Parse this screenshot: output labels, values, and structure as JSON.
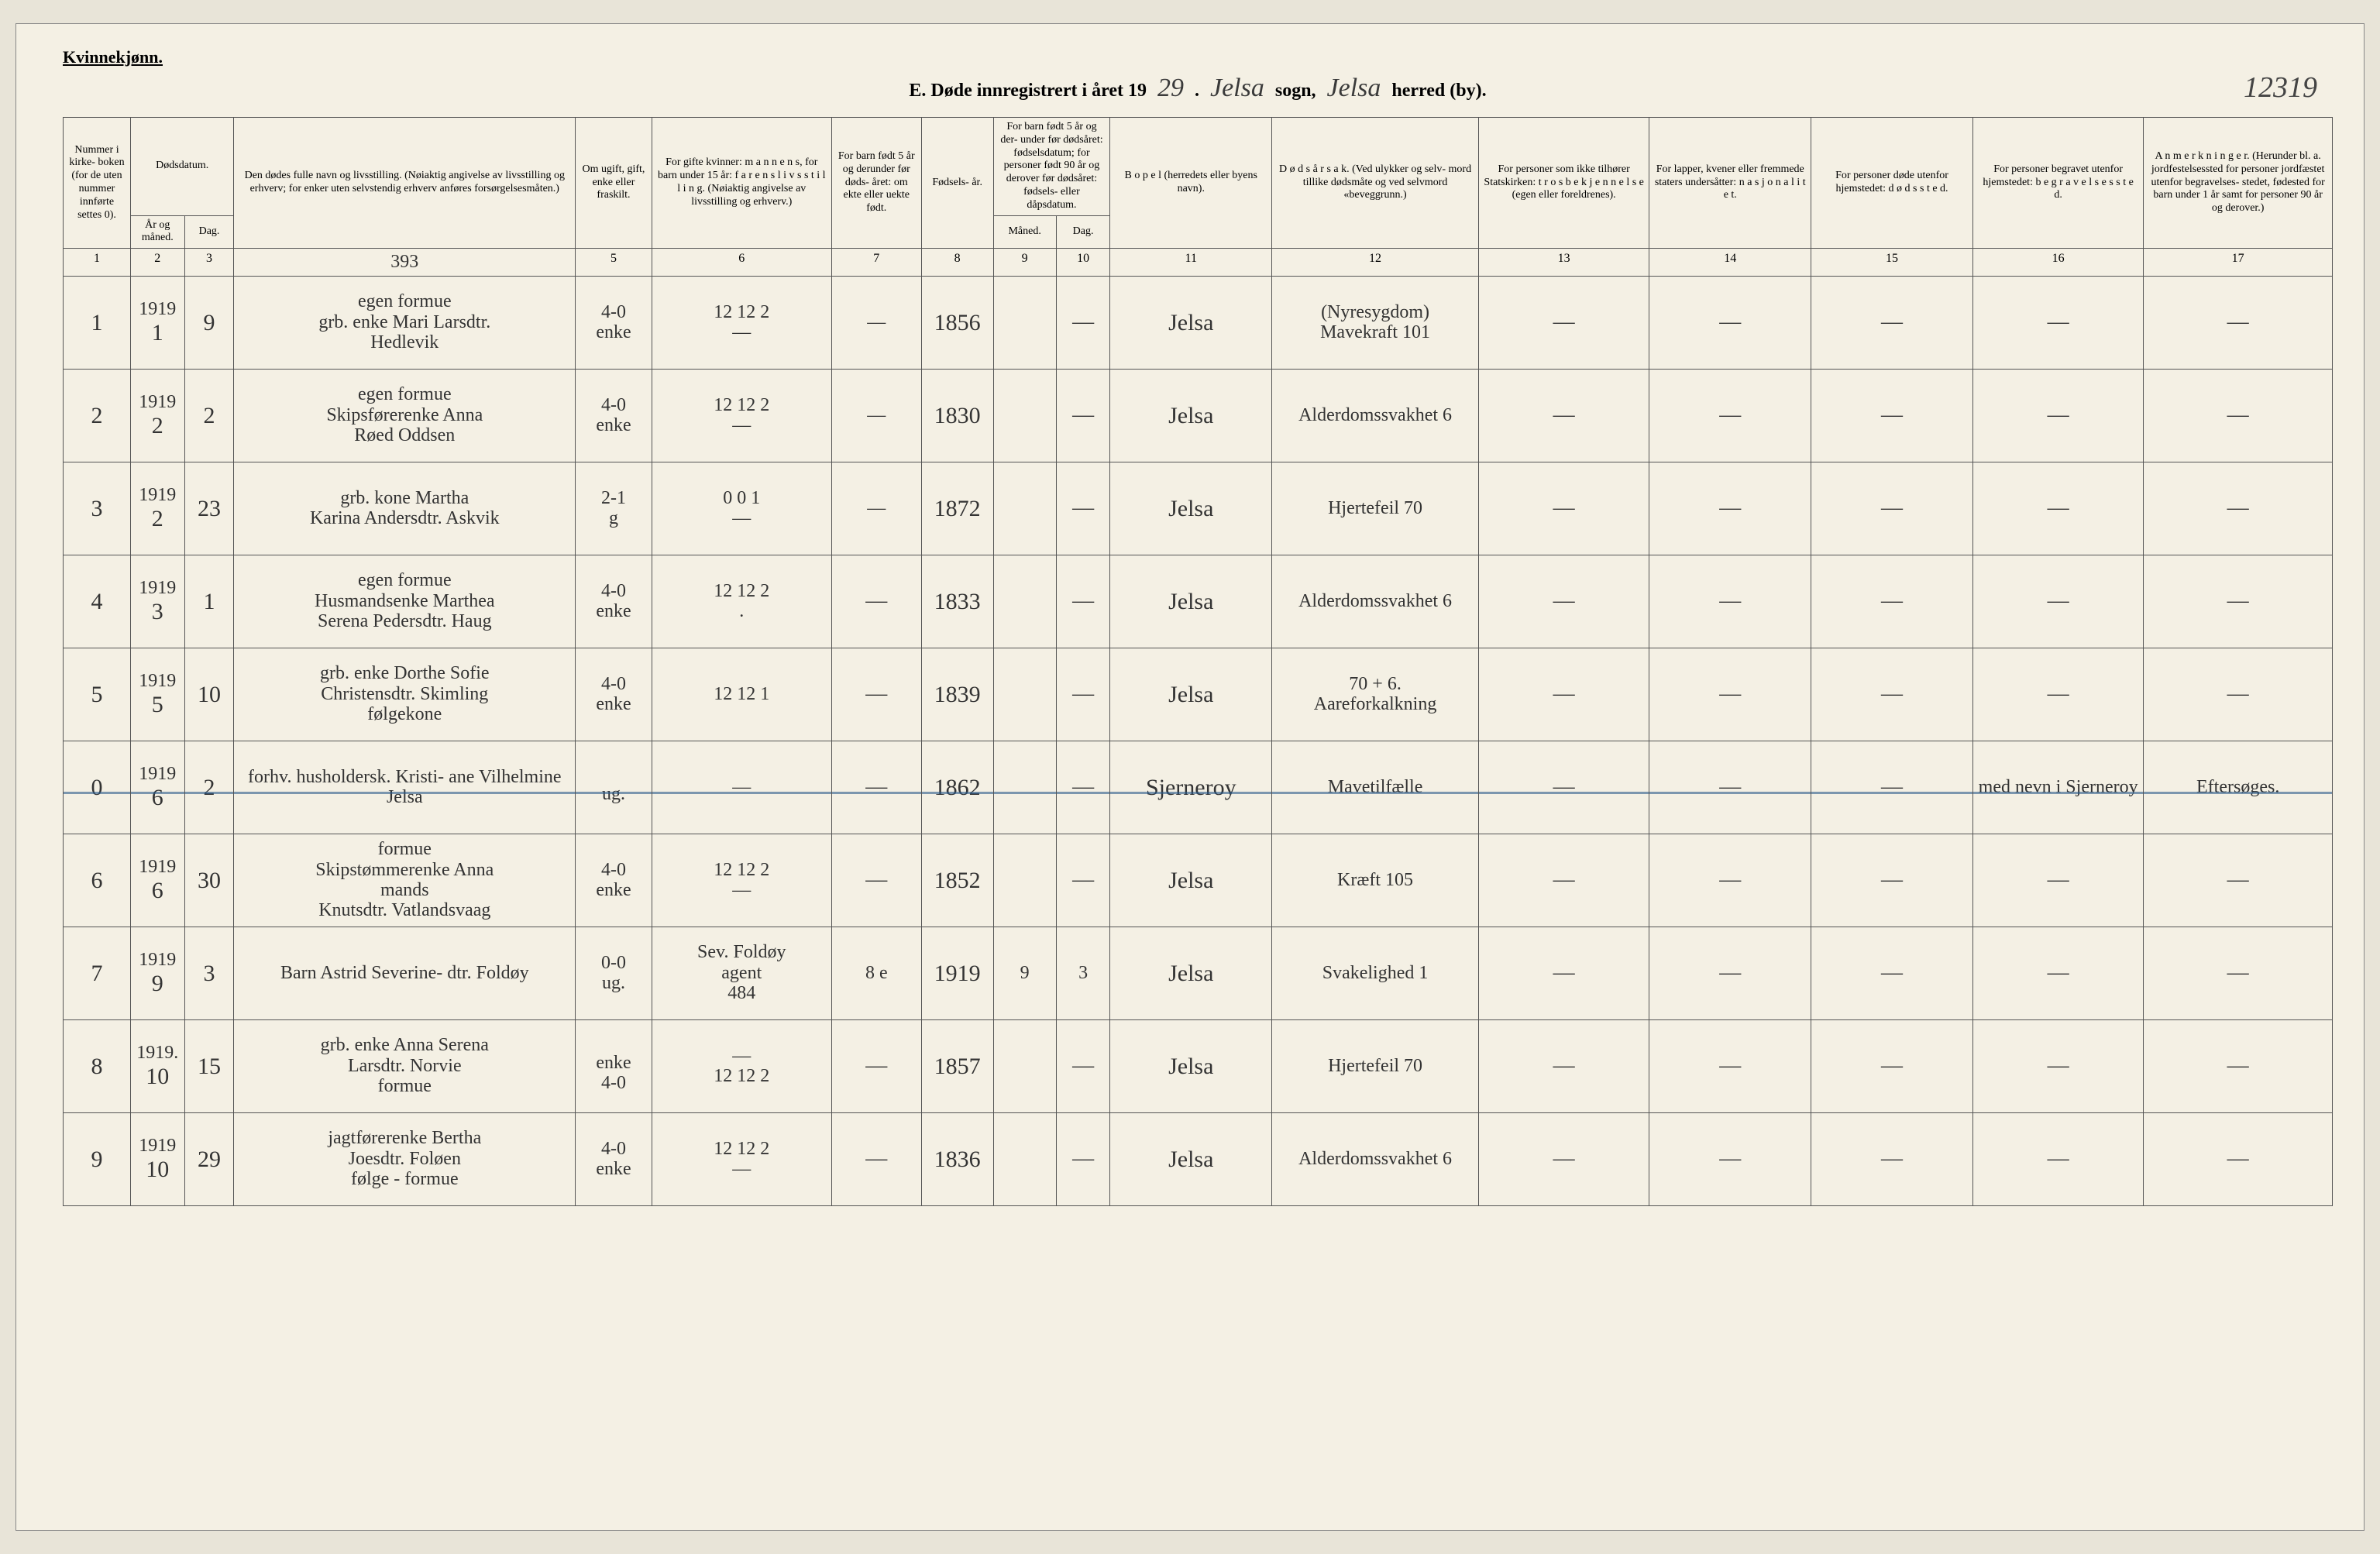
{
  "header": {
    "gender_label": "Kvinnekjønn.",
    "title_prefix": "E.  Døde innregistrert i året 19",
    "year_suffix": "29",
    "sogn_word": "sogn,",
    "sogn_value": "Jelsa",
    "herred_word": "herred (by).",
    "herred_value": "Jelsa",
    "page_number": "12319"
  },
  "columns": {
    "c1": "Nummer i kirke- boken (for de uten nummer innførte settes 0).",
    "c2_top": "Dødsdatum.",
    "c2": "År og måned.",
    "c3": "Dag.",
    "c4": "Den dødes fulle navn og livsstilling. (Nøiaktig angivelse av livsstilling og erhverv; for enker uten selvstendig erhverv anføres forsørgelsesmåten.)",
    "c5": "Om ugift, gift, enke eller fraskilt.",
    "c6": "For gifte kvinner: m a n n e n s, for barn under 15 år: f a r e n s  l i v s s t i l l i n g. (Nøiaktig angivelse av livsstilling og erhverv.)",
    "c7": "For barn født 5 år og derunder før døds- året: om ekte eller uekte født.",
    "c8": "Fødsels- år.",
    "c9_top": "For barn født 5 år og der- under før dødsåret: fødselsdatum; for personer født 90 år og derover før dødsåret: fødsels-  eller dåpsdatum.",
    "c9": "Måned.",
    "c10": "Dag.",
    "c11": "B o p e l (herredets eller byens navn).",
    "c12": "D ø d s å r s a k. (Ved ulykker og selv- mord tillike dødsmåte og ved selvmord «beveggrunn.)",
    "c13": "For personer som ikke tilhører Statskirken: t r o s b e k j e n n e l s e (egen eller foreldrenes).",
    "c14": "For lapper, kvener eller fremmede staters undersåtter: n a s j o n a l i t e t.",
    "c15": "For personer døde utenfor hjemstedet: d ø d s s t e d.",
    "c16": "For personer begravet utenfor hjemstedet: b e g r a v e l s e s s t e d.",
    "c17": "A n m e r k n i n g e r. (Herunder bl. a. jordfestelsessted for personer jordfæstet utenfor begravelses- stedet, fødested for barn under 1 år samt for personer 90 år og derover.)"
  },
  "colnums": [
    "1",
    "2",
    "3",
    "",
    "5",
    "6",
    "7",
    "8",
    "9",
    "10",
    "11",
    "12",
    "13",
    "14",
    "15",
    "16",
    "17"
  ],
  "precol4": "393",
  "rows": [
    {
      "num": "1",
      "yr": "1919",
      "mo": "1",
      "day": "9",
      "name": "egen formue  grb. enke Mari Larsdtr.  Hedlevik",
      "status_a": "4-0",
      "status_b": "enke",
      "spouse": "12 12 2  —",
      "c7": "—",
      "birth": "1856",
      "c9": "",
      "c10": "—",
      "bopel": "Jelsa",
      "cause": "(Nyresygdom)  Mavekraft 101",
      "c13": "—",
      "c14": "—",
      "c15": "—",
      "c16": "—",
      "c17": "—",
      "strike": false
    },
    {
      "num": "2",
      "yr": "1919",
      "mo": "2",
      "day": "2",
      "name": "egen formue  Skipsførerenke Anna  Røed Oddsen",
      "status_a": "4-0",
      "status_b": "enke",
      "spouse": "12 12 2  —",
      "c7": "—",
      "birth": "1830",
      "c9": "",
      "c10": "—",
      "bopel": "Jelsa",
      "cause": "Alderdomssvakhet 6",
      "c13": "—",
      "c14": "—",
      "c15": "—",
      "c16": "—",
      "c17": "—",
      "strike": false
    },
    {
      "num": "3",
      "yr": "1919",
      "mo": "2",
      "day": "23",
      "name": "grb. kone Martha  Karina Andersdtr. Askvik",
      "status_a": "2-1",
      "status_b": "g",
      "spouse": "0 0 1  —",
      "c7": "—",
      "birth": "1872",
      "c9": "",
      "c10": "—",
      "bopel": "Jelsa",
      "cause": "Hjertefeil 70",
      "c13": "—",
      "c14": "—",
      "c15": "—",
      "c16": "—",
      "c17": "—",
      "strike": false
    },
    {
      "num": "4",
      "yr": "1919",
      "mo": "3",
      "day": "1",
      "name": "egen formue  Husmandsenke Marthea  Serena Pedersdtr. Haug",
      "status_a": "4-0",
      "status_b": "enke",
      "spouse": "12 12 2  .",
      "c7": "",
      "birth": "1833",
      "c9": "",
      "c10": "—",
      "bopel": "Jelsa",
      "cause": "Alderdomssvakhet 6",
      "c13": "—",
      "c14": "—",
      "c15": "—",
      "c16": "—",
      "c17": "—",
      "strike": false
    },
    {
      "num": "5",
      "yr": "1919",
      "mo": "5",
      "day": "10",
      "name": "grb. enke Dorthe Sofie  Christensdtr. Skimling  følgekone",
      "status_a": "4-0",
      "status_b": "enke",
      "spouse": "12 12 1",
      "c7": "",
      "birth": "1839",
      "c9": "",
      "c10": "—",
      "bopel": "Jelsa",
      "cause": "70 + 6.  Aareforkalkning",
      "c13": "—",
      "c14": "—",
      "c15": "—",
      "c16": "—",
      "c17": "—",
      "strike": false
    },
    {
      "num": "0",
      "yr": "1919",
      "mo": "6",
      "day": "2",
      "name": "forhv. husholdersk. Kristi- ane Vilhelmine Jelsa",
      "status_a": "",
      "status_b": "ug.",
      "spouse": "—",
      "c7": "",
      "birth": "1862",
      "c9": "",
      "c10": "—",
      "bopel": "Sjerneroy",
      "cause": "Mavetilfælle",
      "c13": "—",
      "c14": "—",
      "c15": "—",
      "c16": "med nevn i Sjerneroy",
      "c17": "Eftersøges.",
      "strike": true
    },
    {
      "num": "6",
      "yr": "1919",
      "mo": "6",
      "day": "30",
      "name": "formue  Skipstømmerenke Anna  mands  Knutsdtr. Vatlandsvaag",
      "status_a": "4-0",
      "status_b": "enke",
      "spouse": "12 12 2  —",
      "c7": "",
      "birth": "1852",
      "c9": "",
      "c10": "—",
      "bopel": "Jelsa",
      "cause": "Kræft 105",
      "c13": "—",
      "c14": "—",
      "c15": "—",
      "c16": "—",
      "c17": "—",
      "strike": false
    },
    {
      "num": "7",
      "yr": "1919",
      "mo": "9",
      "day": "3",
      "name": "Barn Astrid Severine- dtr. Foldøy",
      "status_a": "0-0",
      "status_b": "ug.",
      "spouse": "Sev. Foldøy  agent   484",
      "c7": "8 e",
      "birth": "1919",
      "c9": "9",
      "c10": "3",
      "bopel": "Jelsa",
      "cause": "Svakelighed 1",
      "c13": "—",
      "c14": "—",
      "c15": "—",
      "c16": "—",
      "c17": "—",
      "strike": false
    },
    {
      "num": "8",
      "yr": "1919.",
      "mo": "10",
      "day": "15",
      "name": "grb. enke Anna Serena  Larsdtr. Norvie  formue",
      "status_a": "",
      "status_b": "enke  4-0",
      "spouse": "—  12 12 2",
      "c7": "",
      "birth": "1857",
      "c9": "",
      "c10": "—",
      "bopel": "Jelsa",
      "cause": "Hjertefeil 70",
      "c13": "—",
      "c14": "—",
      "c15": "—",
      "c16": "—",
      "c17": "—",
      "strike": false
    },
    {
      "num": "9",
      "yr": "1919",
      "mo": "10",
      "day": "29",
      "name": "jagtførerenke Bertha  Joesdtr. Foløen  følge - formue",
      "status_a": "4-0",
      "status_b": "enke",
      "spouse": "12 12 2  —",
      "c7": "",
      "birth": "1836",
      "c9": "",
      "c10": "—",
      "bopel": "Jelsa",
      "cause": "Alderdomssvakhet 6",
      "c13": "—",
      "c14": "—",
      "c15": "—",
      "c16": "—",
      "c17": "—",
      "strike": false
    }
  ]
}
